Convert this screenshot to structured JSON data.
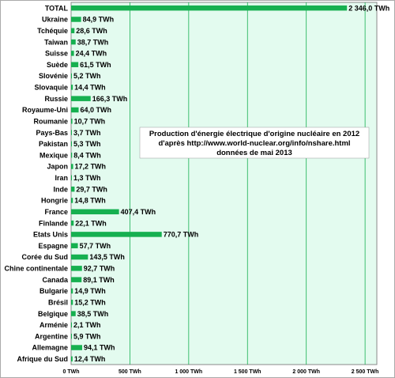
{
  "chart_data": {
    "type": "bar",
    "orientation": "horizontal",
    "title": "",
    "xlabel": "",
    "ylabel": "",
    "xlim": [
      0,
      2600
    ],
    "grid": true,
    "legend": "none",
    "colors": {
      "bar": "#16b050",
      "background": "#e3fbef",
      "grid": "#16b050",
      "border": "#888888"
    },
    "categories": [
      "TOTAL",
      "Ukraine",
      "Tchéquie",
      "Taiwan",
      "Suisse",
      "Suède",
      "Slovénie",
      "Slovaquie",
      "Russie",
      "Royaume-Uni",
      "Roumanie",
      "Pays-Bas",
      "Pakistan",
      "Mexique",
      "Japon",
      "Iran",
      "Inde",
      "Hongrie",
      "France",
      "Finlande",
      "Etats Unis",
      "Espagne",
      "Corée du Sud",
      "Chine continentale",
      "Canada",
      "Bulgarie",
      "Brésil",
      "Belgique",
      "Arménie",
      "Argentine",
      "Allemagne",
      "Afrique du Sud"
    ],
    "values": [
      2346.0,
      84.9,
      28.6,
      38.7,
      24.4,
      61.5,
      5.2,
      14.4,
      166.3,
      64.0,
      10.7,
      3.7,
      5.3,
      8.4,
      17.2,
      1.3,
      29.7,
      14.8,
      407.4,
      22.1,
      770.7,
      57.7,
      143.5,
      92.7,
      89.1,
      14.9,
      15.2,
      38.5,
      2.1,
      5.9,
      94.1,
      12.4
    ],
    "value_labels": [
      "2 346,0 TWh",
      "84,9 TWh",
      "28,6 TWh",
      "38,7 TWh",
      "24,4 TWh",
      "61,5 TWh",
      "5,2 TWh",
      "14,4 TWh",
      "166,3 TWh",
      "64,0 TWh",
      "10,7 TWh",
      "3,7 TWh",
      "5,3 TWh",
      "8,4 TWh",
      "17,2 TWh",
      "1,3 TWh",
      "29,7 TWh",
      "14,8 TWh",
      "407,4 TWh",
      "22,1 TWh",
      "770,7 TWh",
      "57,7 TWh",
      "143,5 TWh",
      "92,7 TWh",
      "89,1 TWh",
      "14,9 TWh",
      "15,2 TWh",
      "38,5 TWh",
      "2,1 TWh",
      "5,9 TWh",
      "94,1 TWh",
      "12,4 TWh"
    ],
    "ticks": [
      0,
      500,
      1000,
      1500,
      2000,
      2500
    ],
    "tick_labels": [
      "0 TWh",
      "500 TWh",
      "1 000 TWh",
      "1 500 TWh",
      "2 000 TWh",
      "2 500 TWh"
    ],
    "annotation": [
      "Production d'énergie électrique d'origine nucléaire en 2012",
      "d'après http://www.world-nuclear.org/info/nshare.html",
      "données de mai 2013"
    ]
  }
}
